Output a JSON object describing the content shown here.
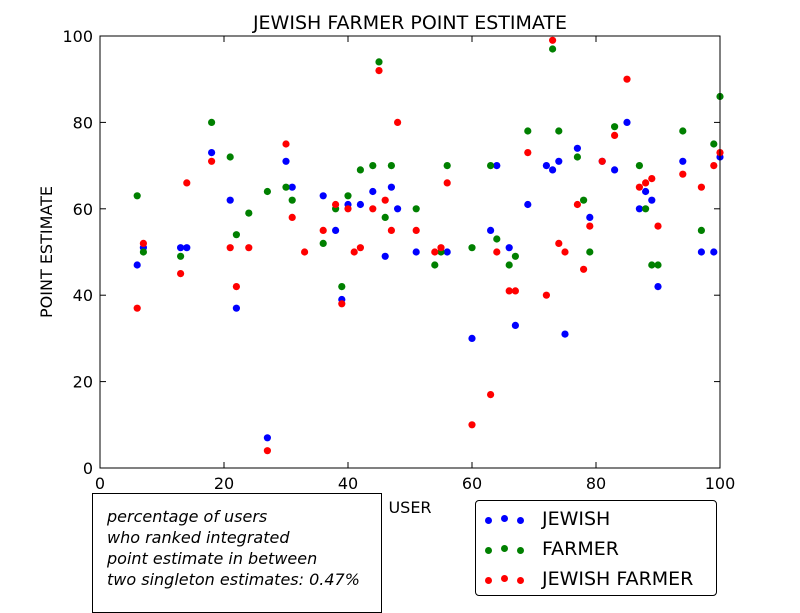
{
  "chart_data": {
    "type": "scatter",
    "title": "JEWISH FARMER POINT ESTIMATE",
    "xlabel": "USER",
    "ylabel": "POINT ESTIMATE",
    "xlim": [
      0,
      100
    ],
    "ylim": [
      0,
      100
    ],
    "xticks": [
      0,
      20,
      40,
      60,
      80,
      100
    ],
    "yticks": [
      0,
      20,
      40,
      60,
      80,
      100
    ],
    "grid": false,
    "legend_position": "bottom-right",
    "series": [
      {
        "name": "JEWISH",
        "color": "#0000ff",
        "points": [
          [
            6,
            47
          ],
          [
            7,
            51
          ],
          [
            13,
            51
          ],
          [
            14,
            51
          ],
          [
            18,
            73
          ],
          [
            21,
            62
          ],
          [
            22,
            37
          ],
          [
            27,
            7
          ],
          [
            30,
            71
          ],
          [
            31,
            65
          ],
          [
            36,
            63
          ],
          [
            38,
            55
          ],
          [
            39,
            39
          ],
          [
            40,
            61
          ],
          [
            42,
            61
          ],
          [
            44,
            64
          ],
          [
            46,
            49
          ],
          [
            47,
            65
          ],
          [
            48,
            60
          ],
          [
            51,
            50
          ],
          [
            56,
            50
          ],
          [
            60,
            30
          ],
          [
            63,
            55
          ],
          [
            64,
            70
          ],
          [
            66,
            51
          ],
          [
            67,
            33
          ],
          [
            69,
            61
          ],
          [
            72,
            70
          ],
          [
            73,
            69
          ],
          [
            74,
            71
          ],
          [
            75,
            31
          ],
          [
            77,
            74
          ],
          [
            79,
            58
          ],
          [
            81,
            71
          ],
          [
            83,
            69
          ],
          [
            85,
            80
          ],
          [
            87,
            60
          ],
          [
            88,
            64
          ],
          [
            89,
            62
          ],
          [
            90,
            42
          ],
          [
            94,
            71
          ],
          [
            97,
            50
          ],
          [
            99,
            50
          ],
          [
            100,
            72
          ]
        ]
      },
      {
        "name": "FARMER",
        "color": "#008000",
        "points": [
          [
            6,
            63
          ],
          [
            7,
            50
          ],
          [
            13,
            49
          ],
          [
            18,
            80
          ],
          [
            21,
            72
          ],
          [
            22,
            54
          ],
          [
            24,
            59
          ],
          [
            27,
            64
          ],
          [
            30,
            65
          ],
          [
            31,
            62
          ],
          [
            36,
            52
          ],
          [
            38,
            60
          ],
          [
            39,
            42
          ],
          [
            40,
            63
          ],
          [
            42,
            69
          ],
          [
            44,
            70
          ],
          [
            45,
            94
          ],
          [
            46,
            58
          ],
          [
            47,
            70
          ],
          [
            51,
            60
          ],
          [
            54,
            47
          ],
          [
            55,
            50
          ],
          [
            56,
            70
          ],
          [
            60,
            51
          ],
          [
            63,
            70
          ],
          [
            64,
            53
          ],
          [
            66,
            47
          ],
          [
            67,
            49
          ],
          [
            69,
            78
          ],
          [
            73,
            97
          ],
          [
            74,
            78
          ],
          [
            77,
            72
          ],
          [
            78,
            62
          ],
          [
            79,
            50
          ],
          [
            83,
            79
          ],
          [
            87,
            70
          ],
          [
            88,
            60
          ],
          [
            89,
            47
          ],
          [
            90,
            47
          ],
          [
            94,
            78
          ],
          [
            97,
            55
          ],
          [
            99,
            75
          ],
          [
            100,
            86
          ]
        ]
      },
      {
        "name": "JEWISH FARMER",
        "color": "#ff0000",
        "points": [
          [
            6,
            37
          ],
          [
            7,
            52
          ],
          [
            13,
            45
          ],
          [
            14,
            66
          ],
          [
            18,
            71
          ],
          [
            21,
            51
          ],
          [
            22,
            42
          ],
          [
            24,
            51
          ],
          [
            27,
            4
          ],
          [
            30,
            75
          ],
          [
            31,
            58
          ],
          [
            33,
            50
          ],
          [
            36,
            55
          ],
          [
            38,
            61
          ],
          [
            39,
            38
          ],
          [
            40,
            60
          ],
          [
            41,
            50
          ],
          [
            42,
            51
          ],
          [
            44,
            60
          ],
          [
            45,
            92
          ],
          [
            46,
            62
          ],
          [
            47,
            55
          ],
          [
            48,
            80
          ],
          [
            51,
            55
          ],
          [
            54,
            50
          ],
          [
            55,
            51
          ],
          [
            56,
            66
          ],
          [
            60,
            10
          ],
          [
            63,
            17
          ],
          [
            64,
            50
          ],
          [
            66,
            41
          ],
          [
            67,
            41
          ],
          [
            69,
            73
          ],
          [
            72,
            40
          ],
          [
            73,
            99
          ],
          [
            74,
            52
          ],
          [
            75,
            50
          ],
          [
            77,
            61
          ],
          [
            78,
            46
          ],
          [
            79,
            56
          ],
          [
            81,
            71
          ],
          [
            83,
            77
          ],
          [
            85,
            90
          ],
          [
            87,
            65
          ],
          [
            88,
            66
          ],
          [
            89,
            67
          ],
          [
            90,
            56
          ],
          [
            94,
            68
          ],
          [
            97,
            65
          ],
          [
            99,
            70
          ],
          [
            100,
            73
          ]
        ]
      }
    ]
  },
  "annotation": {
    "lines": [
      "percentage of users",
      "who ranked integrated",
      "point estimate in between",
      "two singleton estimates: 0.47%"
    ]
  }
}
